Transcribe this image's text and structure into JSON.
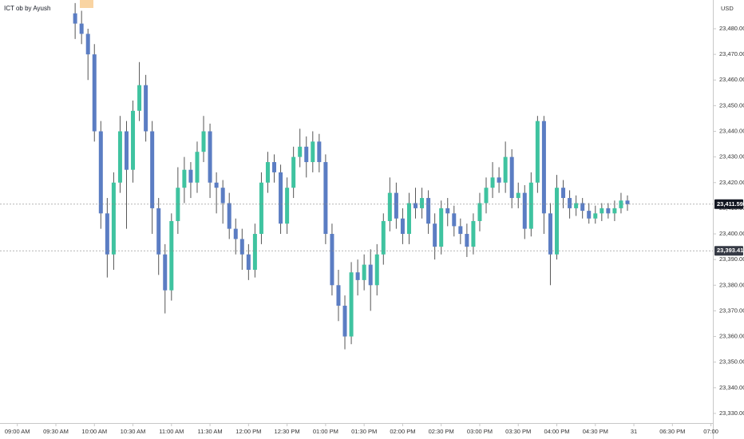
{
  "chart_data": {
    "type": "candlestick",
    "title": "ICT ob by Ayush",
    "currency": "USD",
    "up_color": "#3fc3a0",
    "down_color": "#5b7dc3",
    "x": [
      9,
      10,
      11,
      12,
      13,
      14,
      15,
      16,
      17,
      18,
      19,
      20,
      21,
      22,
      23,
      24,
      25,
      26,
      27,
      28,
      29,
      30,
      31,
      32,
      33,
      34,
      35,
      36,
      37,
      38,
      39,
      40,
      41,
      42,
      43,
      44,
      45,
      46,
      47,
      48,
      49,
      50,
      51,
      52,
      53,
      54,
      55,
      56,
      57,
      58,
      59,
      60,
      61,
      62,
      63,
      64,
      65,
      66,
      67,
      68,
      69,
      70,
      71,
      72,
      73,
      74,
      75,
      76,
      77,
      78,
      79,
      80,
      81,
      82,
      83,
      84,
      85,
      86,
      87,
      88,
      89,
      90,
      91,
      92,
      93,
      94,
      95
    ],
    "open": [
      23486,
      23482,
      23478,
      23470,
      23440,
      23408,
      23392,
      23420,
      23440,
      23425,
      23448,
      23458,
      23440,
      23410,
      23392,
      23378,
      23405,
      23418,
      23425,
      23420,
      23432,
      23440,
      23420,
      23418,
      23412,
      23402,
      23398,
      23392,
      23386,
      23400,
      23420,
      23428,
      23424,
      23404,
      23418,
      23430,
      23434,
      23428,
      23436,
      23428,
      23400,
      23380,
      23372,
      23360,
      23385,
      23382,
      23388,
      23380,
      23392,
      23405,
      23416,
      23406,
      23400,
      23412,
      23410,
      23414,
      23404,
      23395,
      23410,
      23408,
      23403,
      23400,
      23395,
      23405,
      23412,
      23418,
      23422,
      23420,
      23430,
      23414,
      23416,
      23402,
      23420,
      23444,
      23408,
      23392,
      23418,
      23414,
      23410,
      23412,
      23409,
      23406,
      23408,
      23410,
      23408,
      23410,
      23413
    ],
    "high": [
      23490,
      23487,
      23480,
      23474,
      23444,
      23414,
      23424,
      23446,
      23444,
      23452,
      23467,
      23462,
      23444,
      23414,
      23396,
      23408,
      23426,
      23430,
      23428,
      23436,
      23446,
      23443,
      23424,
      23421,
      23416,
      23406,
      23402,
      23396,
      23404,
      23424,
      23432,
      23431,
      23427,
      23422,
      23434,
      23441,
      23438,
      23440,
      23439,
      23431,
      23404,
      23386,
      23376,
      23389,
      23390,
      23392,
      23394,
      23396,
      23408,
      23422,
      23420,
      23410,
      23416,
      23418,
      23418,
      23417,
      23408,
      23413,
      23414,
      23411,
      23406,
      23404,
      23408,
      23416,
      23422,
      23428,
      23426,
      23436,
      23433,
      23420,
      23419,
      23424,
      23446,
      23446,
      23412,
      23423,
      23421,
      23417,
      23415,
      23414,
      23412,
      23411,
      23412,
      23412,
      23413,
      23416,
      23415
    ],
    "low": [
      23476,
      23474,
      23460,
      23436,
      23402,
      23383,
      23386,
      23416,
      23402,
      23420,
      23444,
      23436,
      23400,
      23384,
      23369,
      23374,
      23400,
      23412,
      23414,
      23416,
      23428,
      23414,
      23408,
      23404,
      23398,
      23392,
      23386,
      23382,
      23383,
      23396,
      23416,
      23420,
      23400,
      23400,
      23414,
      23426,
      23422,
      23424,
      23424,
      23396,
      23376,
      23366,
      23355,
      23357,
      23376,
      23378,
      23370,
      23376,
      23388,
      23401,
      23402,
      23396,
      23396,
      23406,
      23406,
      23400,
      23390,
      23392,
      23403,
      23399,
      23396,
      23391,
      23392,
      23401,
      23408,
      23414,
      23416,
      23416,
      23410,
      23410,
      23398,
      23399,
      23416,
      23400,
      23380,
      23390,
      23410,
      23406,
      23407,
      23406,
      23404,
      23404,
      23405,
      23406,
      23405,
      23408,
      23409
    ],
    "close": [
      23482,
      23478,
      23470,
      23440,
      23408,
      23392,
      23420,
      23440,
      23425,
      23448,
      23458,
      23440,
      23410,
      23392,
      23378,
      23405,
      23418,
      23425,
      23420,
      23432,
      23440,
      23420,
      23418,
      23412,
      23402,
      23398,
      23392,
      23386,
      23400,
      23420,
      23428,
      23424,
      23404,
      23418,
      23430,
      23434,
      23428,
      23436,
      23428,
      23400,
      23380,
      23372,
      23360,
      23385,
      23382,
      23388,
      23380,
      23392,
      23405,
      23416,
      23406,
      23400,
      23412,
      23410,
      23414,
      23404,
      23395,
      23410,
      23408,
      23403,
      23400,
      23395,
      23405,
      23412,
      23418,
      23422,
      23420,
      23430,
      23414,
      23416,
      23402,
      23420,
      23444,
      23408,
      23392,
      23418,
      23414,
      23410,
      23412,
      23409,
      23406,
      23408,
      23410,
      23408,
      23410,
      23413,
      23411.59
    ],
    "xlim": [
      -2.7,
      108.3
    ],
    "xticks": [
      {
        "value": 0,
        "label": "09:00 AM"
      },
      {
        "value": 6,
        "label": "09:30 AM"
      },
      {
        "value": 12,
        "label": "10:00 AM"
      },
      {
        "value": 18,
        "label": "10:30 AM"
      },
      {
        "value": 24,
        "label": "11:00 AM"
      },
      {
        "value": 30,
        "label": "11:30 AM"
      },
      {
        "value": 36,
        "label": "12:00 PM"
      },
      {
        "value": 42,
        "label": "12:30 PM"
      },
      {
        "value": 48,
        "label": "01:00 PM"
      },
      {
        "value": 54,
        "label": "01:30 PM"
      },
      {
        "value": 60,
        "label": "02:00 PM"
      },
      {
        "value": 66,
        "label": "02:30 PM"
      },
      {
        "value": 72,
        "label": "03:00 PM"
      },
      {
        "value": 78,
        "label": "03:30 PM"
      },
      {
        "value": 84,
        "label": "04:00 PM"
      },
      {
        "value": 90,
        "label": "04:30 PM"
      },
      {
        "value": 96,
        "label": "31"
      },
      {
        "value": 102,
        "label": "06:30 PM"
      },
      {
        "value": 108,
        "label": "07:00"
      }
    ],
    "ylim": [
      23326.25,
      23491.2
    ],
    "yticks": [
      {
        "value": 23330,
        "label": "23,330.00"
      },
      {
        "value": 23340,
        "label": "23,340.00"
      },
      {
        "value": 23350,
        "label": "23,350.00"
      },
      {
        "value": 23360,
        "label": "23,360.00"
      },
      {
        "value": 23370,
        "label": "23,370.00"
      },
      {
        "value": 23380,
        "label": "23,380.00"
      },
      {
        "value": 23390,
        "label": "23,390.00"
      },
      {
        "value": 23400,
        "label": "23,400.00"
      },
      {
        "value": 23410,
        "label": "23,410.00"
      },
      {
        "value": 23420,
        "label": "23,420.00"
      },
      {
        "value": 23430,
        "label": "23,430.00"
      },
      {
        "value": 23440,
        "label": "23,440.00"
      },
      {
        "value": 23450,
        "label": "23,450.00"
      },
      {
        "value": 23460,
        "label": "23,460.00"
      },
      {
        "value": 23470,
        "label": "23,470.00"
      },
      {
        "value": 23480,
        "label": "23,480.00"
      }
    ],
    "price_lines": [
      {
        "value": 23411.59,
        "label": "23,411.59",
        "color": "#131722"
      },
      {
        "value": 23393.41,
        "label": "23,393.41",
        "color": "#363a45"
      }
    ]
  }
}
